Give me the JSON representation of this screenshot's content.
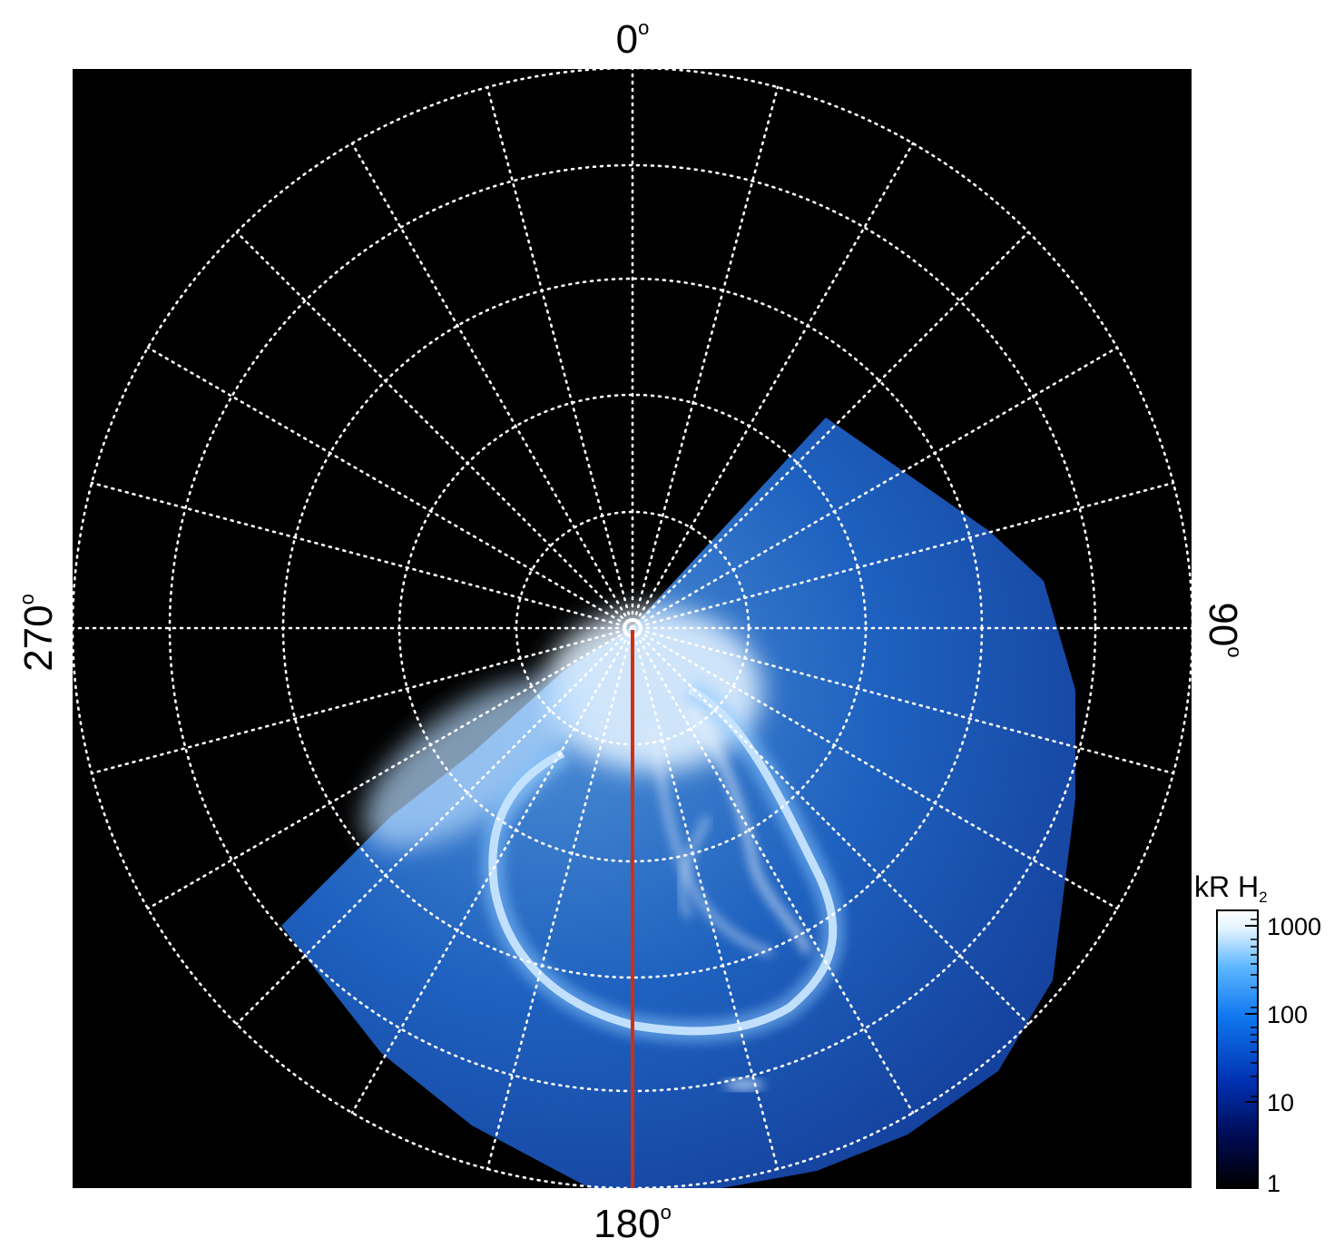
{
  "figure": {
    "colors": {
      "background": "#000000",
      "grid": "#ffffff",
      "meridian_line": "#d03010",
      "aurora_low": "#001a8a",
      "aurora_mid": "#1a8cff",
      "aurora_high": "#ffffff"
    },
    "longitude_labels": {
      "top": "0",
      "right": "90",
      "bottom": "180",
      "left": "270",
      "degree_symbol": "o"
    },
    "colorbar": {
      "title_main": "kR H",
      "title_sub": "2",
      "scale": "log",
      "range": [
        1,
        1000
      ],
      "ticks": [
        "1000",
        "100",
        "10",
        "1"
      ],
      "colors": [
        "#000000",
        "#000a50",
        "#0030b0",
        "#1078f0",
        "#60b8ff",
        "#e0f2ff",
        "#ffffff"
      ]
    }
  }
}
